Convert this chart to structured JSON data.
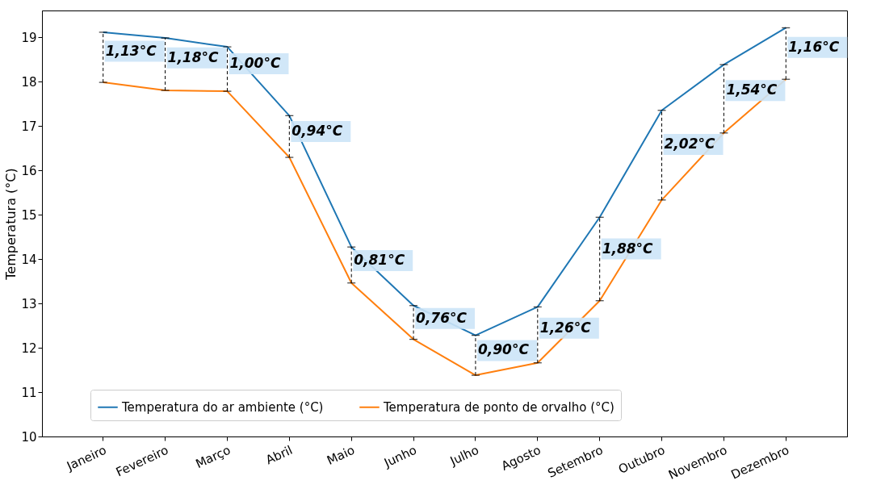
{
  "chart_data": {
    "type": "line",
    "ylabel": "Temperatura (°C)",
    "categories": [
      "Janeiro",
      "Fevereiro",
      "Março",
      "Abril",
      "Maio",
      "Junho",
      "Julho",
      "Agosto",
      "Setembro",
      "Outubro",
      "Novembro",
      "Dezembro"
    ],
    "series": [
      {
        "name": "Temperatura do ar ambiente (°C)",
        "color": "#1f77b4",
        "values": [
          19.11,
          18.98,
          18.78,
          17.23,
          14.27,
          12.95,
          12.28,
          12.92,
          14.94,
          17.35,
          18.38,
          19.21
        ],
        "errors": [
          [
            17.98,
            19.11
          ],
          [
            17.8,
            18.98
          ],
          [
            17.78,
            18.78
          ],
          [
            16.29,
            17.23
          ],
          [
            13.46,
            14.27
          ],
          [
            12.19,
            12.95
          ],
          [
            11.38,
            12.28
          ],
          [
            11.66,
            12.92
          ],
          [
            13.06,
            14.94
          ],
          [
            15.33,
            17.35
          ],
          [
            16.84,
            18.38
          ],
          [
            18.05,
            19.21
          ]
        ]
      },
      {
        "name": "Temperatura de ponto de orvalho (°C)",
        "color": "#ff7f0e",
        "values": [
          17.98,
          17.8,
          17.78,
          16.29,
          13.46,
          12.19,
          11.38,
          11.66,
          13.06,
          15.33,
          16.84,
          18.05
        ]
      }
    ],
    "ylim": [
      10,
      19.6
    ],
    "yticks": [
      10,
      11,
      12,
      13,
      14,
      15,
      16,
      17,
      18,
      19
    ],
    "grid": false,
    "legend": "bottom",
    "marker": "none",
    "line_style": "solid",
    "annotations": [
      "1,13°C",
      "1,18°C",
      "1,00°C",
      "0,94°C",
      "0,81°C",
      "0,76°C",
      "0,90°C",
      "1,26°C",
      "1,88°C",
      "2,02°C",
      "1,54°C",
      "1,16°C"
    ]
  }
}
